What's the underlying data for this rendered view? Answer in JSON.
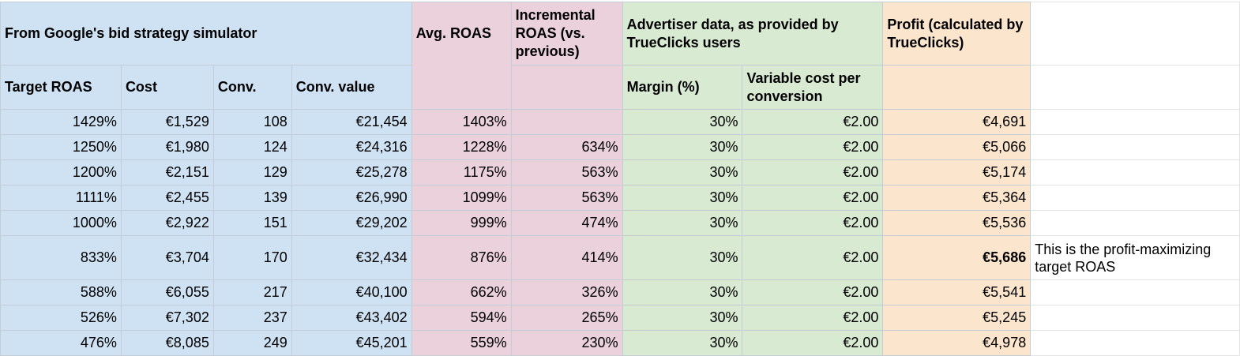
{
  "headers": {
    "group_simulator": "From Google's bid strategy simulator",
    "avg_roas": "Avg. ROAS",
    "incremental_roas": "Incremental ROAS (vs. previous)",
    "group_advertiser": "Advertiser data, as provided by TrueClicks users",
    "profit": "Profit (calculated by TrueClicks)",
    "target_roas": "Target ROAS",
    "cost": "Cost",
    "conv": "Conv.",
    "conv_value": "Conv. value",
    "margin": "Margin (%)",
    "variable_cost": "Variable cost per conversion"
  },
  "rows": [
    {
      "target_roas": "1429%",
      "cost": "€1,529",
      "conv": "108",
      "conv_value": "€21,454",
      "avg_roas": "1403%",
      "incremental_roas": "",
      "margin": "30%",
      "variable_cost": "€2.00",
      "profit": "€4,691"
    },
    {
      "target_roas": "1250%",
      "cost": "€1,980",
      "conv": "124",
      "conv_value": "€24,316",
      "avg_roas": "1228%",
      "incremental_roas": "634%",
      "margin": "30%",
      "variable_cost": "€2.00",
      "profit": "€5,066"
    },
    {
      "target_roas": "1200%",
      "cost": "€2,151",
      "conv": "129",
      "conv_value": "€25,278",
      "avg_roas": "1175%",
      "incremental_roas": "563%",
      "margin": "30%",
      "variable_cost": "€2.00",
      "profit": "€5,174"
    },
    {
      "target_roas": "1111%",
      "cost": "€2,455",
      "conv": "139",
      "conv_value": "€26,990",
      "avg_roas": "1099%",
      "incremental_roas": "563%",
      "margin": "30%",
      "variable_cost": "€2.00",
      "profit": "€5,364"
    },
    {
      "target_roas": "1000%",
      "cost": "€2,922",
      "conv": "151",
      "conv_value": "€29,202",
      "avg_roas": "999%",
      "incremental_roas": "474%",
      "margin": "30%",
      "variable_cost": "€2.00",
      "profit": "€5,536"
    },
    {
      "target_roas": "833%",
      "cost": "€3,704",
      "conv": "170",
      "conv_value": "€32,434",
      "avg_roas": "876%",
      "incremental_roas": "414%",
      "margin": "30%",
      "variable_cost": "€2.00",
      "profit": "€5,686",
      "note": "This is the profit-maximizing target ROAS",
      "highlight": true
    },
    {
      "target_roas": "588%",
      "cost": "€6,055",
      "conv": "217",
      "conv_value": "€40,100",
      "avg_roas": "662%",
      "incremental_roas": "326%",
      "margin": "30%",
      "variable_cost": "€2.00",
      "profit": "€5,541"
    },
    {
      "target_roas": "526%",
      "cost": "€7,302",
      "conv": "237",
      "conv_value": "€43,402",
      "avg_roas": "594%",
      "incremental_roas": "265%",
      "margin": "30%",
      "variable_cost": "€2.00",
      "profit": "€5,245"
    },
    {
      "target_roas": "476%",
      "cost": "€8,085",
      "conv": "249",
      "conv_value": "€45,201",
      "avg_roas": "559%",
      "incremental_roas": "230%",
      "margin": "30%",
      "variable_cost": "€2.00",
      "profit": "€4,978"
    }
  ]
}
